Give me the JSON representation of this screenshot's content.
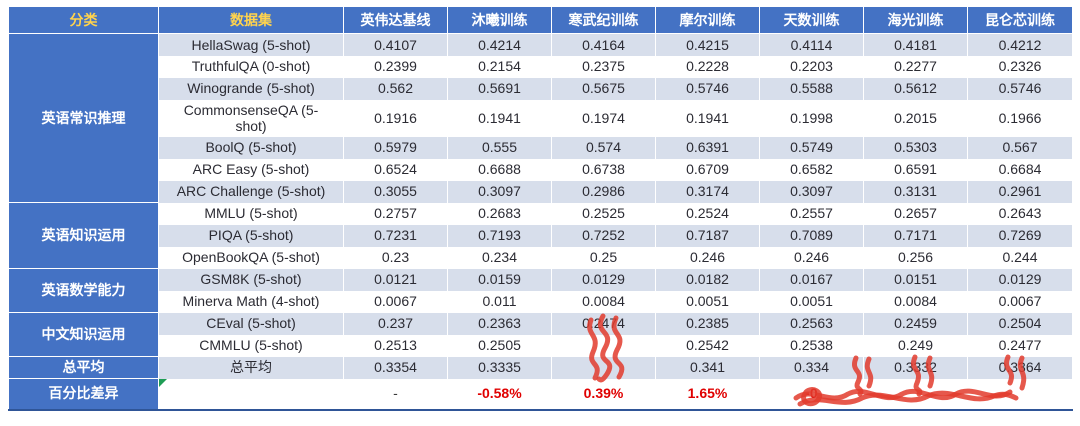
{
  "table": {
    "header": {
      "category_label": "分类",
      "dataset_label": "数据集",
      "column_labels": [
        "英伟达基线",
        "沐曦训练",
        "寒武纪训练",
        "摩尔训练",
        "天数训练",
        "海光训练",
        "昆仑芯训练"
      ]
    },
    "groups": [
      {
        "category": "英语常识推理",
        "rows": [
          {
            "dataset": "HellaSwag (5-shot)",
            "values": [
              "0.4107",
              "0.4214",
              "0.4164",
              "0.4215",
              "0.4114",
              "0.4181",
              "0.4212"
            ]
          },
          {
            "dataset": "TruthfulQA (0-shot)",
            "values": [
              "0.2399",
              "0.2154",
              "0.2375",
              "0.2228",
              "0.2203",
              "0.2277",
              "0.2326"
            ]
          },
          {
            "dataset": "Winogrande (5-shot)",
            "values": [
              "0.562",
              "0.5691",
              "0.5675",
              "0.5746",
              "0.5588",
              "0.5612",
              "0.5746"
            ]
          },
          {
            "dataset": "CommonsenseQA (5-shot)",
            "tall": true,
            "values": [
              "0.1916",
              "0.1941",
              "0.1974",
              "0.1941",
              "0.1998",
              "0.2015",
              "0.1966"
            ]
          },
          {
            "dataset": "BoolQ (5-shot)",
            "values": [
              "0.5979",
              "0.555",
              "0.574",
              "0.6391",
              "0.5749",
              "0.5303",
              "0.567"
            ]
          },
          {
            "dataset": "ARC Easy (5-shot)",
            "values": [
              "0.6524",
              "0.6688",
              "0.6738",
              "0.6709",
              "0.6582",
              "0.6591",
              "0.6684"
            ]
          },
          {
            "dataset": "ARC Challenge (5-shot)",
            "values": [
              "0.3055",
              "0.3097",
              "0.2986",
              "0.3174",
              "0.3097",
              "0.3131",
              "0.2961"
            ]
          }
        ]
      },
      {
        "category": "英语知识运用",
        "rows": [
          {
            "dataset": "MMLU (5-shot)",
            "values": [
              "0.2757",
              "0.2683",
              "0.2525",
              "0.2524",
              "0.2557",
              "0.2657",
              "0.2643"
            ]
          },
          {
            "dataset": "PIQA (5-shot)",
            "values": [
              "0.7231",
              "0.7193",
              "0.7252",
              "0.7187",
              "0.7089",
              "0.7171",
              "0.7269"
            ]
          },
          {
            "dataset": "OpenBookQA (5-shot)",
            "values": [
              "0.23",
              "0.234",
              "0.25",
              "0.246",
              "0.246",
              "0.256",
              "0.244"
            ]
          }
        ]
      },
      {
        "category": "英语数学能力",
        "rows": [
          {
            "dataset": "GSM8K (5-shot)",
            "values": [
              "0.0121",
              "0.0159",
              "0.0129",
              "0.0182",
              "0.0167",
              "0.0151",
              "0.0129"
            ]
          },
          {
            "dataset": "Minerva Math (4-shot)",
            "values": [
              "0.0067",
              "0.011",
              "0.0084",
              "0.0051",
              "0.0051",
              "0.0084",
              "0.0067"
            ]
          }
        ]
      },
      {
        "category": "中文知识运用",
        "rows": [
          {
            "dataset": "CEval (5-shot)",
            "values": [
              "0.237",
              "0.2363",
              "0.2474",
              "0.2385",
              "0.2563",
              "0.2459",
              "0.2504"
            ]
          },
          {
            "dataset": "CMMLU (5-shot)",
            "values": [
              "0.2513",
              "0.2505",
              "",
              "0.2542",
              "0.2538",
              "0.249",
              "0.2477"
            ]
          }
        ]
      },
      {
        "category": "总平均",
        "rows": [
          {
            "dataset": "总平均",
            "values": [
              "0.3354",
              "0.3335",
              "",
              "0.341",
              "0.334",
              "0.3332",
              "0.3364"
            ]
          }
        ]
      },
      {
        "category": "百分比差异",
        "percent": true,
        "rows": [
          {
            "dataset": "",
            "note_marker": true,
            "values": [
              "-",
              "-0.58%",
              "0.39%",
              "1.65%",
              "-0",
              "",
              ""
            ]
          }
        ]
      }
    ],
    "colors": {
      "header_bg": "#4472C4",
      "header_accent_text": "#FFD34D",
      "band_bg": "#D7DEEB",
      "percent_text": "#E00000",
      "scribble_red": "#E23B2D",
      "note_marker_green": "#1F9D55",
      "bottom_line": "#2F5597"
    },
    "annotations": {
      "scribble_description": "red marker scribbles over 寒武纪 lower cells and over percent-difference row",
      "note_marker_description": "green corner marker on empty dataset cell of percent row"
    }
  }
}
